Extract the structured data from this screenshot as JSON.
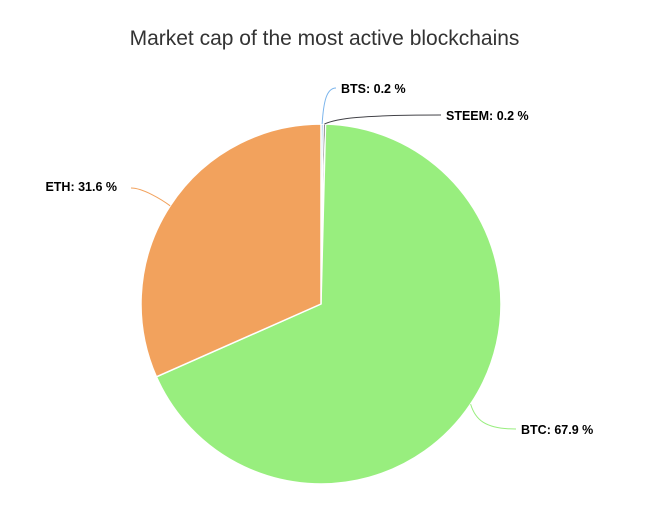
{
  "chart_data": {
    "type": "pie",
    "title": "Market cap of the most active blockchains",
    "slices": [
      {
        "name": "BTS",
        "value": 0.2,
        "label": "BTS: 0.2 %",
        "color": "#7cb5ec"
      },
      {
        "name": "STEEM",
        "value": 0.2,
        "label": "STEEM: 0.2 %",
        "color": "#434348"
      },
      {
        "name": "BTC",
        "value": 67.9,
        "label": "BTC: 67.9 %",
        "color": "#98ee7e"
      },
      {
        "name": "ETH",
        "value": 31.6,
        "label": "ETH: 31.6 %",
        "color": "#f2a25d"
      }
    ]
  }
}
